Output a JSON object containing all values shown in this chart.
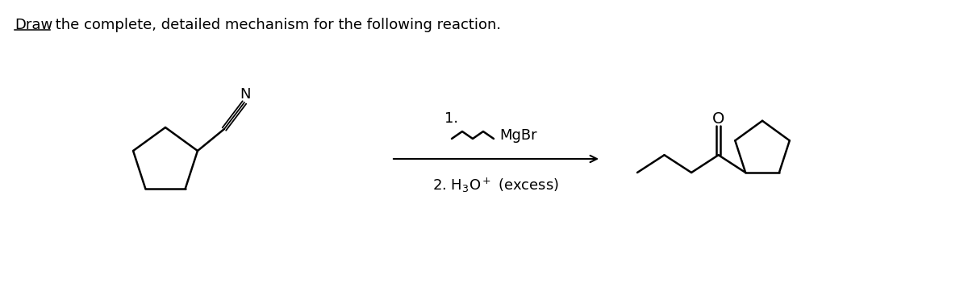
{
  "background": "#ffffff",
  "text_color": "#000000",
  "title_draw": "Draw",
  "title_rest": " the complete, detailed mechanism for the following reaction.",
  "reagent_step1": "1.",
  "reagent_mgbr": "MgBr",
  "reagent_step2": "2. H$_3$O$^+$ (excess)",
  "lw": 1.8,
  "fig_width": 12.0,
  "fig_height": 3.72,
  "dpi": 100
}
